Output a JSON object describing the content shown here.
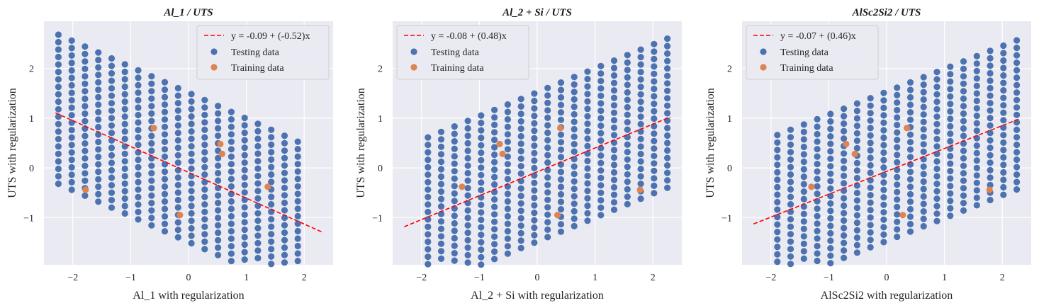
{
  "colors": {
    "background": "#eaeaf2",
    "grid": "#ffffff",
    "testing": "#4c72b0",
    "training": "#dd8452",
    "fit_line": "#ff0000"
  },
  "chart_data": [
    {
      "type": "scatter",
      "title": "Al_1 / UTS",
      "xlabel": "Al_1 with regularization",
      "ylabel": "UTS with regularization",
      "xlim": [
        -2.5,
        2.5
      ],
      "ylim": [
        -1.95,
        2.95
      ],
      "xticks": [
        -2,
        -1,
        0,
        1,
        2
      ],
      "yticks": [
        -1,
        0,
        1,
        2
      ],
      "grid": true,
      "legend_position": "top-right",
      "fit": {
        "label": "y = -0.09 + (-0.52)x",
        "intercept": -0.09,
        "slope": -0.52,
        "x_range": [
          -2.3,
          2.3
        ]
      },
      "testing": {
        "name": "Testing data",
        "grid": {
          "x": [
            -2.25,
            -2.02,
            -1.79,
            -1.56,
            -1.33,
            -1.1,
            -0.87,
            -0.64,
            -0.41,
            -0.18,
            0.05,
            0.28,
            0.51,
            0.74,
            0.97,
            1.2,
            1.43,
            1.66,
            1.89
          ],
          "slope": -0.52,
          "intercept": -0.09,
          "residuals": [
            -1.4,
            -1.25,
            -1.1,
            -0.95,
            -0.8,
            -0.65,
            -0.5,
            -0.35,
            -0.2,
            -0.05,
            0.1,
            0.25,
            0.4,
            0.55,
            0.7,
            0.85,
            1.0,
            1.15,
            1.3,
            1.45,
            1.6
          ]
        }
      },
      "training": {
        "name": "Training data",
        "x": [
          -1.78,
          -0.6,
          -0.15,
          0.55,
          0.58,
          1.37
        ],
        "y": [
          -0.44,
          0.8,
          -0.95,
          0.48,
          0.28,
          -0.38
        ]
      }
    },
    {
      "type": "scatter",
      "title": "Al_2 + Si / UTS",
      "xlabel": "Al_2 + Si with regularization",
      "ylabel": "UTS with regularization",
      "xlim": [
        -2.5,
        2.5
      ],
      "ylim": [
        -1.95,
        2.95
      ],
      "xticks": [
        -2,
        -1,
        0,
        1,
        2
      ],
      "yticks": [
        -1,
        0,
        1,
        2
      ],
      "grid": true,
      "legend_position": "top-left",
      "fit": {
        "label": "y = -0.08 + (0.48)x",
        "intercept": -0.08,
        "slope": 0.48,
        "x_range": [
          -2.3,
          2.3
        ]
      },
      "testing": {
        "name": "Testing data",
        "grid": {
          "x": [
            -1.89,
            -1.66,
            -1.43,
            -1.2,
            -0.97,
            -0.74,
            -0.51,
            -0.28,
            -0.05,
            0.18,
            0.41,
            0.64,
            0.87,
            1.1,
            1.33,
            1.56,
            1.79,
            2.02,
            2.25
          ],
          "slope": 0.48,
          "intercept": -0.08,
          "residuals": [
            -1.4,
            -1.25,
            -1.1,
            -0.95,
            -0.8,
            -0.65,
            -0.5,
            -0.35,
            -0.2,
            -0.05,
            0.1,
            0.25,
            0.4,
            0.55,
            0.7,
            0.85,
            1.0,
            1.15,
            1.3,
            1.45,
            1.6
          ]
        }
      },
      "training": {
        "name": "Training data",
        "x": [
          -1.3,
          -0.65,
          -0.6,
          0.4,
          0.35,
          1.78
        ],
        "y": [
          -0.38,
          0.48,
          0.28,
          0.8,
          -0.95,
          -0.44
        ]
      }
    },
    {
      "type": "scatter",
      "title": "AlSc2Si2 / UTS",
      "xlabel": "AlSc2Si2 with regularization",
      "ylabel": "UTS with regularization",
      "xlim": [
        -2.5,
        2.5
      ],
      "ylim": [
        -1.95,
        2.95
      ],
      "xticks": [
        -2,
        -1,
        0,
        1,
        2
      ],
      "yticks": [
        -1,
        0,
        1,
        2
      ],
      "grid": true,
      "legend_position": "top-left",
      "fit": {
        "label": "y = -0.07 + (0.46)x",
        "intercept": -0.07,
        "slope": 0.46,
        "x_range": [
          -2.3,
          2.3
        ]
      },
      "testing": {
        "name": "Testing data",
        "grid": {
          "x": [
            -1.89,
            -1.66,
            -1.43,
            -1.2,
            -0.97,
            -0.74,
            -0.51,
            -0.28,
            -0.05,
            0.18,
            0.41,
            0.64,
            0.87,
            1.1,
            1.33,
            1.56,
            1.79,
            2.02,
            2.25
          ],
          "slope": 0.46,
          "intercept": -0.07,
          "residuals": [
            -1.4,
            -1.25,
            -1.1,
            -0.95,
            -0.8,
            -0.65,
            -0.5,
            -0.35,
            -0.2,
            -0.05,
            0.1,
            0.25,
            0.4,
            0.55,
            0.7,
            0.85,
            1.0,
            1.15,
            1.3,
            1.45,
            1.6
          ]
        }
      },
      "training": {
        "name": "Training data",
        "x": [
          -1.3,
          -0.7,
          -0.55,
          0.35,
          0.28,
          1.78
        ],
        "y": [
          -0.38,
          0.48,
          0.28,
          0.8,
          -0.95,
          -0.44
        ]
      }
    }
  ]
}
